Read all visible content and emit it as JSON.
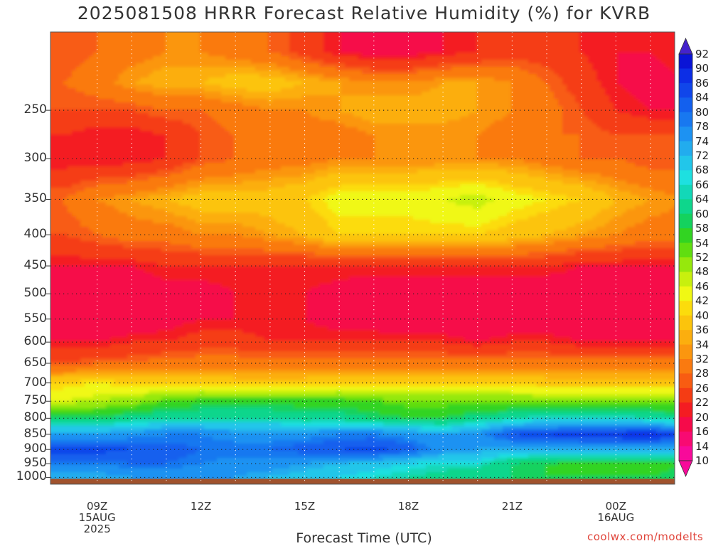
{
  "title": "2025081508 HRRR Forecast Relative Humidity (%) for KVRB",
  "credit": "coolwx.com/modelts",
  "chart_data": {
    "type": "heatmap",
    "title": "2025081508 HRRR Forecast Relative Humidity (%) for KVRB",
    "xlabel": "Forecast Time (UTC)",
    "ylabel": "",
    "x_hours": [
      8,
      9,
      10,
      11,
      12,
      13,
      14,
      15,
      16,
      17,
      18,
      19,
      20,
      21,
      22,
      23,
      24,
      25,
      26
    ],
    "x_ticks": [
      {
        "hour": 9,
        "lines": [
          "09Z",
          "15AUG",
          "2025"
        ]
      },
      {
        "hour": 12,
        "lines": [
          "12Z"
        ]
      },
      {
        "hour": 15,
        "lines": [
          "15Z"
        ]
      },
      {
        "hour": 18,
        "lines": [
          "18Z"
        ]
      },
      {
        "hour": 21,
        "lines": [
          "21Z"
        ]
      },
      {
        "hour": 24,
        "lines": [
          "00Z",
          "16AUG"
        ]
      }
    ],
    "y_levels": [
      200,
      225,
      250,
      275,
      300,
      350,
      400,
      450,
      500,
      550,
      600,
      650,
      700,
      750,
      800,
      850,
      900,
      950,
      1000
    ],
    "y_ticks": [
      250,
      300,
      350,
      400,
      450,
      500,
      550,
      600,
      650,
      700,
      750,
      800,
      850,
      900,
      950,
      1000
    ],
    "y_scale": "log",
    "y_range": [
      186,
      1026
    ],
    "values": [
      [
        26,
        28,
        30,
        32,
        32,
        30,
        28,
        24,
        20,
        18,
        18,
        20,
        22,
        24,
        24,
        22,
        20,
        20,
        22
      ],
      [
        28,
        30,
        34,
        36,
        36,
        38,
        38,
        36,
        34,
        32,
        32,
        34,
        34,
        32,
        28,
        24,
        20,
        18,
        20
      ],
      [
        26,
        26,
        26,
        28,
        28,
        30,
        32,
        32,
        34,
        36,
        36,
        36,
        34,
        32,
        30,
        26,
        22,
        20,
        20
      ],
      [
        22,
        20,
        20,
        22,
        26,
        28,
        30,
        30,
        30,
        32,
        32,
        32,
        32,
        30,
        28,
        28,
        26,
        26,
        26
      ],
      [
        20,
        20,
        20,
        22,
        26,
        28,
        30,
        30,
        32,
        32,
        32,
        32,
        32,
        32,
        30,
        28,
        28,
        26,
        26
      ],
      [
        28,
        32,
        34,
        36,
        38,
        38,
        38,
        40,
        44,
        44,
        44,
        46,
        48,
        44,
        42,
        40,
        36,
        34,
        32
      ],
      [
        26,
        28,
        30,
        30,
        32,
        32,
        34,
        36,
        40,
        40,
        40,
        40,
        40,
        38,
        36,
        34,
        32,
        30,
        30
      ],
      [
        20,
        20,
        20,
        22,
        22,
        22,
        22,
        22,
        22,
        22,
        22,
        22,
        22,
        22,
        22,
        20,
        20,
        20,
        20
      ],
      [
        16,
        16,
        16,
        18,
        18,
        20,
        20,
        20,
        18,
        16,
        16,
        16,
        16,
        16,
        16,
        16,
        16,
        16,
        16
      ],
      [
        16,
        16,
        16,
        18,
        20,
        20,
        20,
        20,
        18,
        18,
        16,
        16,
        16,
        16,
        16,
        16,
        16,
        16,
        16
      ],
      [
        20,
        20,
        22,
        22,
        24,
        24,
        22,
        22,
        22,
        22,
        22,
        22,
        20,
        22,
        22,
        20,
        20,
        20,
        20
      ],
      [
        26,
        28,
        28,
        30,
        30,
        30,
        30,
        30,
        30,
        30,
        30,
        30,
        30,
        30,
        30,
        30,
        30,
        30,
        30
      ],
      [
        40,
        42,
        40,
        40,
        40,
        38,
        38,
        38,
        40,
        40,
        40,
        40,
        40,
        40,
        38,
        38,
        38,
        38,
        38
      ],
      [
        46,
        48,
        50,
        54,
        56,
        56,
        56,
        56,
        56,
        54,
        52,
        52,
        52,
        52,
        52,
        52,
        52,
        52,
        52
      ],
      [
        60,
        60,
        62,
        64,
        64,
        64,
        64,
        62,
        62,
        60,
        58,
        58,
        62,
        64,
        66,
        66,
        66,
        64,
        62
      ],
      [
        74,
        74,
        76,
        78,
        78,
        76,
        76,
        76,
        78,
        78,
        76,
        74,
        76,
        84,
        86,
        88,
        88,
        90,
        84
      ],
      [
        86,
        86,
        84,
        82,
        80,
        80,
        80,
        82,
        84,
        86,
        82,
        76,
        74,
        72,
        72,
        72,
        72,
        72,
        72
      ],
      [
        78,
        78,
        80,
        80,
        78,
        76,
        76,
        74,
        72,
        70,
        68,
        66,
        66,
        60,
        58,
        56,
        56,
        56,
        58
      ],
      [
        72,
        72,
        74,
        74,
        74,
        74,
        72,
        70,
        68,
        66,
        64,
        62,
        60,
        60,
        58,
        58,
        58,
        58,
        60
      ]
    ],
    "colorbar": {
      "levels": [
        92,
        90,
        86,
        84,
        80,
        78,
        74,
        72,
        68,
        66,
        64,
        60,
        58,
        54,
        52,
        48,
        46,
        42,
        40,
        36,
        34,
        32,
        28,
        26,
        22,
        20,
        16,
        14,
        10
      ],
      "colors": [
        "#4422cc",
        "#0a14d6",
        "#0c2ee6",
        "#1046ea",
        "#1360ee",
        "#1878f0",
        "#1d92f2",
        "#22acee",
        "#22c6ea",
        "#1ee0e0",
        "#12d8b8",
        "#0ed68c",
        "#14d25e",
        "#32d422",
        "#60de10",
        "#96e80c",
        "#c8f00e",
        "#f0f814",
        "#fcdc0c",
        "#fcc40c",
        "#fcae0e",
        "#fb960f",
        "#fa7a10",
        "#f85c12",
        "#f53c14",
        "#f41c22",
        "#f60a4a",
        "#f80a72",
        "#f80a9a"
      ]
    },
    "terrain_color": "#a0522d",
    "grid": true
  }
}
